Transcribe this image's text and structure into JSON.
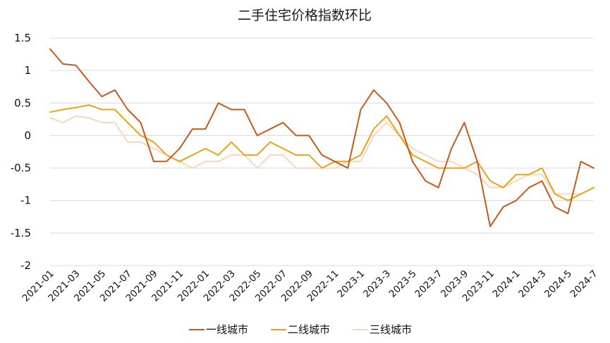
{
  "chart_data": {
    "type": "line",
    "title": "二手住宅价格指数环比",
    "xlabel": "",
    "ylabel": "",
    "ylim": [
      -2,
      1.5
    ],
    "yticks": [
      1.5,
      1,
      0.5,
      0,
      -0.5,
      -1,
      -1.5,
      -2
    ],
    "ytick_labels": [
      "1.5",
      "1",
      "0.5",
      "0",
      "-0.5",
      "-1",
      "-1.5",
      "-2"
    ],
    "grid": "horizontal",
    "legend_position": "bottom",
    "x": [
      "2021-01",
      "2021-02",
      "2021-03",
      "2021-04",
      "2021-05",
      "2021-06",
      "2021-07",
      "2021-08",
      "2021-09",
      "2021-10",
      "2021-11",
      "2021-12",
      "2022-01",
      "2022-02",
      "2022-03",
      "2022-04",
      "2022-05",
      "2022-06",
      "2022-07",
      "2022-08",
      "2022-09",
      "2022-10",
      "2022-11",
      "2022-12",
      "2023-1",
      "2023-2",
      "2023-3",
      "2023-4",
      "2023-5",
      "2023-6",
      "2023-7",
      "2023-8",
      "2023-9",
      "2023-10",
      "2023-11",
      "2023-12",
      "2024-1",
      "2024-2",
      "2024-3",
      "2024-4",
      "2024-5",
      "2024-6",
      "2024-7"
    ],
    "xtick_labels": [
      "2021-01",
      "2021-03",
      "2021-05",
      "2021-07",
      "2021-09",
      "2021-11",
      "2022-01",
      "2022-03",
      "2022-05",
      "2022-07",
      "2022-09",
      "2022-11",
      "2023-1",
      "2023-3",
      "2023-5",
      "2023-7",
      "2023-9",
      "2023-11",
      "2024-1",
      "2024-3",
      "2024-5",
      "2024-7"
    ],
    "series": [
      {
        "name": "一线城市",
        "color": "#c55a1f",
        "values": [
          1.33,
          1.1,
          1.08,
          0.83,
          0.6,
          0.7,
          0.4,
          0.2,
          -0.4,
          -0.4,
          -0.2,
          0.1,
          0.1,
          0.5,
          0.4,
          0.4,
          0.0,
          0.1,
          0.2,
          0.0,
          0.0,
          -0.3,
          -0.4,
          -0.5,
          0.4,
          0.7,
          0.5,
          0.2,
          -0.4,
          -0.7,
          -0.8,
          -0.2,
          0.2,
          -0.4,
          -1.4,
          -1.1,
          -1.0,
          -0.8,
          -0.7,
          -1.1,
          -1.2,
          -0.4,
          -0.5
        ]
      },
      {
        "name": "二线城市",
        "color": "#e8a317",
        "values": [
          0.36,
          0.4,
          0.43,
          0.47,
          0.4,
          0.4,
          0.2,
          0.0,
          -0.1,
          -0.3,
          -0.4,
          -0.3,
          -0.2,
          -0.3,
          -0.1,
          -0.3,
          -0.3,
          -0.1,
          -0.2,
          -0.3,
          -0.3,
          -0.5,
          -0.4,
          -0.4,
          -0.3,
          0.1,
          0.3,
          0.0,
          -0.3,
          -0.4,
          -0.5,
          -0.5,
          -0.5,
          -0.4,
          -0.7,
          -0.8,
          -0.6,
          -0.6,
          -0.5,
          -0.9,
          -1.0,
          -0.9,
          -0.8
        ]
      },
      {
        "name": "三线城市",
        "color": "#f8d7bd",
        "values": [
          0.27,
          0.2,
          0.3,
          0.27,
          0.2,
          0.2,
          -0.1,
          -0.1,
          -0.2,
          -0.3,
          -0.4,
          -0.5,
          -0.4,
          -0.4,
          -0.3,
          -0.3,
          -0.5,
          -0.3,
          -0.3,
          -0.5,
          -0.5,
          -0.5,
          -0.5,
          -0.4,
          -0.4,
          0.0,
          0.2,
          0.0,
          -0.2,
          -0.3,
          -0.4,
          -0.4,
          -0.5,
          -0.6,
          -0.8,
          -0.8,
          -0.7,
          -0.6,
          -0.6,
          -0.9,
          -0.9,
          -0.9,
          -0.8
        ]
      }
    ]
  }
}
